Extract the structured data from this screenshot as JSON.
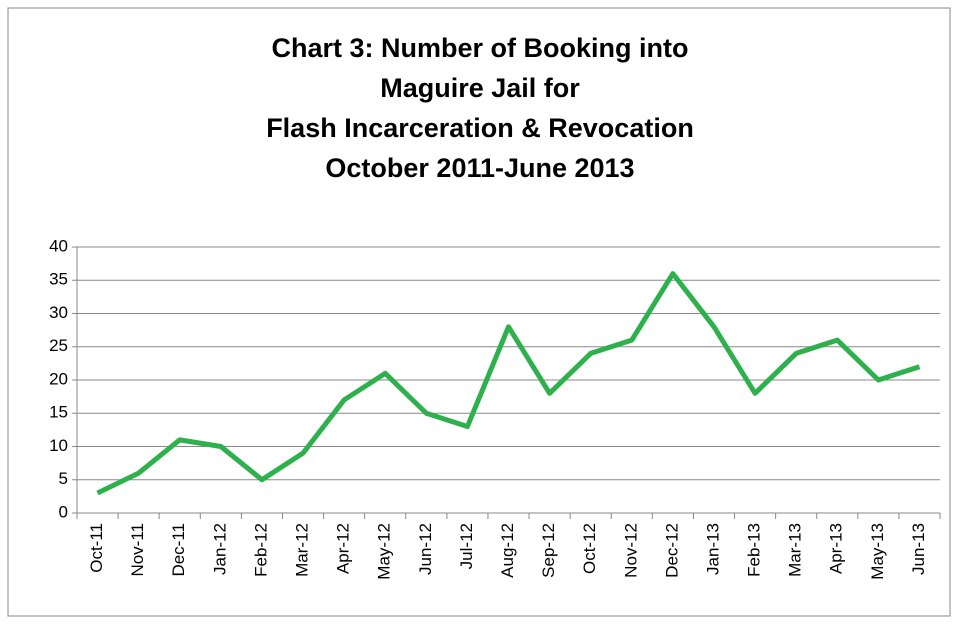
{
  "chart_data": {
    "type": "line",
    "title": [
      "Chart 3: Number of Booking into",
      "Maguire Jail for",
      "Flash Incarceration & Revocation",
      "October 2011-June 2013"
    ],
    "categories": [
      "Oct-11",
      "Nov-11",
      "Dec-11",
      "Jan-12",
      "Feb-12",
      "Mar-12",
      "Apr-12",
      "May-12",
      "Jun-12",
      "Jul-12",
      "Aug-12",
      "Sep-12",
      "Oct-12",
      "Nov-12",
      "Dec-12",
      "Jan-13",
      "Feb-13",
      "Mar-13",
      "Apr-13",
      "May-13",
      "Jun-13"
    ],
    "values": [
      3,
      6,
      11,
      10,
      5,
      9,
      17,
      21,
      15,
      13,
      28,
      18,
      24,
      26,
      36,
      28,
      18,
      24,
      26,
      20,
      22
    ],
    "color": "#2eb04c",
    "ylim": [
      0,
      40
    ],
    "yticks": [
      0,
      5,
      10,
      15,
      20,
      25,
      30,
      35,
      40
    ],
    "grid": true
  }
}
